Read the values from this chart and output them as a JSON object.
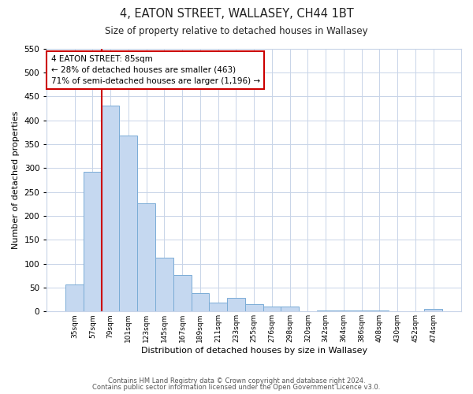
{
  "title": "4, EATON STREET, WALLASEY, CH44 1BT",
  "subtitle": "Size of property relative to detached houses in Wallasey",
  "xlabel": "Distribution of detached houses by size in Wallasey",
  "ylabel": "Number of detached properties",
  "categories": [
    "35sqm",
    "57sqm",
    "79sqm",
    "101sqm",
    "123sqm",
    "145sqm",
    "167sqm",
    "189sqm",
    "211sqm",
    "233sqm",
    "255sqm",
    "276sqm",
    "298sqm",
    "320sqm",
    "342sqm",
    "364sqm",
    "386sqm",
    "408sqm",
    "430sqm",
    "452sqm",
    "474sqm"
  ],
  "values": [
    57,
    292,
    430,
    368,
    226,
    113,
    76,
    38,
    19,
    28,
    15,
    10,
    10,
    0,
    2,
    2,
    2,
    2,
    0,
    0,
    5
  ],
  "bar_color": "#c5d8f0",
  "bar_edge_color": "#7aacd6",
  "vline_color": "#cc0000",
  "annotation_text": "4 EATON STREET: 85sqm\n← 28% of detached houses are smaller (463)\n71% of semi-detached houses are larger (1,196) →",
  "annotation_box_color": "#ffffff",
  "annotation_box_edge_color": "#cc0000",
  "ylim": [
    0,
    550
  ],
  "yticks": [
    0,
    50,
    100,
    150,
    200,
    250,
    300,
    350,
    400,
    450,
    500,
    550
  ],
  "footer_line1": "Contains HM Land Registry data © Crown copyright and database right 2024.",
  "footer_line2": "Contains public sector information licensed under the Open Government Licence v3.0.",
  "background_color": "#ffffff",
  "grid_color": "#c8d4e8"
}
